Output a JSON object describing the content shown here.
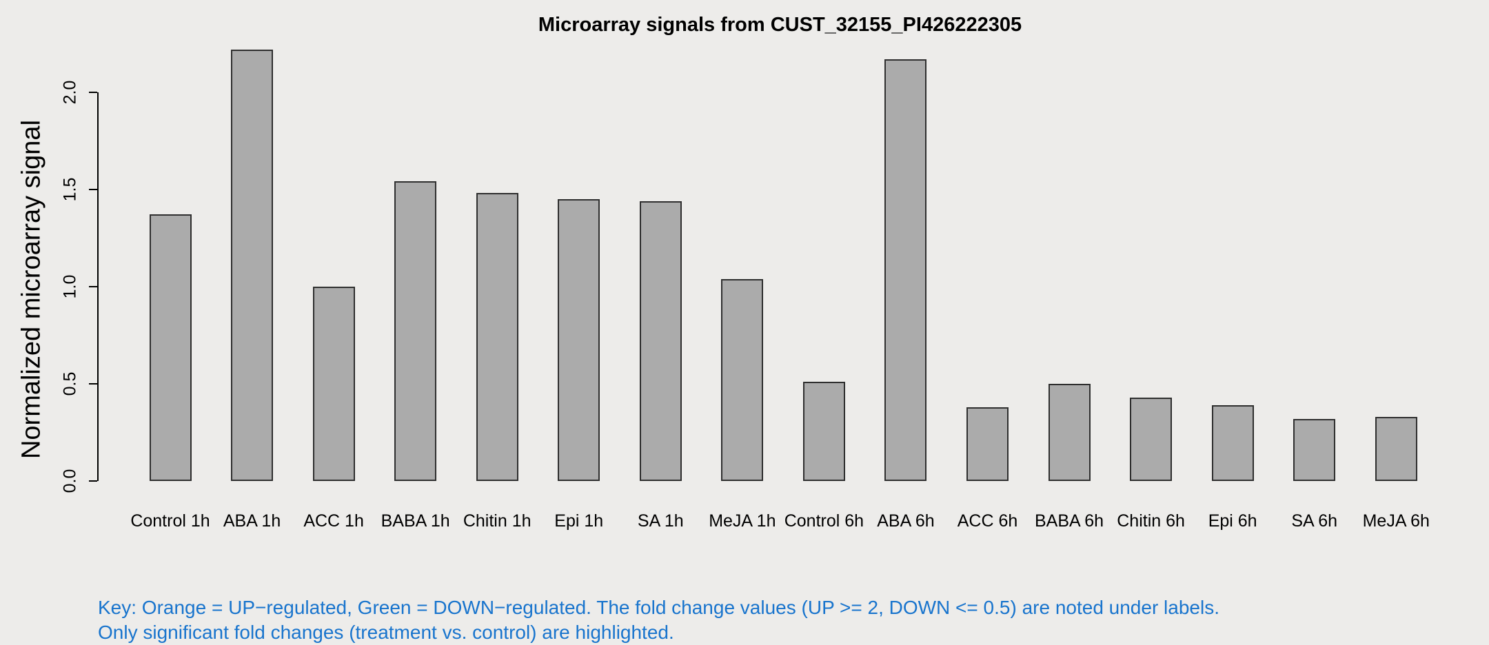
{
  "title": "Microarray signals from CUST_32155_PI426222305",
  "y_axis": {
    "label": "Normalized microarray signal"
  },
  "key": {
    "line1": "Key: Orange = UP−regulated, Green = DOWN−regulated. The fold change values (UP >= 2, DOWN <= 0.5) are noted under labels.",
    "line2": "Only significant fold changes (treatment vs. control) are highlighted."
  },
  "colors": {
    "background": "#EDECEA",
    "bar_fill": "#ABABAB",
    "bar_border": "#2E2E2E",
    "axis": "#000000",
    "tick_label_text": "#000000",
    "key_text": "#1874CD"
  },
  "chart_data": {
    "type": "bar",
    "title": "Microarray signals from CUST_32155_PI426222305",
    "xlabel": "",
    "ylabel": "Normalized microarray signal",
    "categories": [
      "Control 1h",
      "ABA 1h",
      "ACC 1h",
      "BABA 1h",
      "Chitin 1h",
      "Epi 1h",
      "SA 1h",
      "MeJA 1h",
      "Control 6h",
      "ABA 6h",
      "ACC 6h",
      "BABA 6h",
      "Chitin 6h",
      "Epi 6h",
      "SA 6h",
      "MeJA 6h"
    ],
    "values": [
      1.37,
      2.22,
      1.0,
      1.54,
      1.48,
      1.45,
      1.44,
      1.04,
      0.51,
      2.17,
      0.38,
      0.5,
      0.43,
      0.39,
      0.32,
      0.33
    ],
    "y_ticks": [
      0.0,
      0.5,
      1.0,
      1.5,
      2.0
    ],
    "ylim": [
      0,
      2.25
    ],
    "grid": false,
    "legend_position": "none",
    "bar_color": "#ABABAB"
  }
}
